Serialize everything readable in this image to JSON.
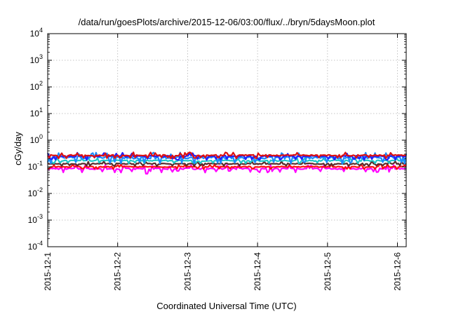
{
  "chart_data": {
    "type": "line",
    "title": "/data/run/goesPlots/archive/2015-12-06/03:00/flux/../bryn/5daysMoon.plot",
    "xlabel": "Coordinated Universal Time (UTC)",
    "ylabel": "cGy/day",
    "y_scale": "log",
    "ylim": [
      0.0001,
      10000
    ],
    "y_ticks": [
      {
        "base": "10",
        "exp": "4",
        "value": 10000
      },
      {
        "base": "10",
        "exp": "3",
        "value": 1000
      },
      {
        "base": "10",
        "exp": "2",
        "value": 100
      },
      {
        "base": "10",
        "exp": "1",
        "value": 10
      },
      {
        "base": "10",
        "exp": "0",
        "value": 1
      },
      {
        "base": "10",
        "exp": "-1",
        "value": 0.1
      },
      {
        "base": "10",
        "exp": "-2",
        "value": 0.01
      },
      {
        "base": "10",
        "exp": "-3",
        "value": 0.001
      },
      {
        "base": "10",
        "exp": "-4",
        "value": 0.0001
      }
    ],
    "xlim": [
      "2015-12-01T00:00",
      "2015-12-06T03:00"
    ],
    "x_ticks": [
      "2015-12-1",
      "2015-12-2",
      "2015-12-3",
      "2015-12-4",
      "2015-12-5",
      "2015-12-6"
    ],
    "grid": true,
    "legend": "none",
    "series": [
      {
        "color": "#ff00ff",
        "base": 0.085,
        "amp": 0.12,
        "dips": [
          [
            1.42,
            0.055
          ],
          [
            1.85,
            0.07
          ],
          [
            2.6,
            0.07
          ]
        ]
      },
      {
        "color": "#ff1010",
        "base": 0.1,
        "amp": 0.08,
        "dips": []
      },
      {
        "color": "#5a2a2a",
        "base": 0.13,
        "amp": 0.08,
        "dips": []
      },
      {
        "color": "#20c8c8",
        "base": 0.17,
        "amp": 0.09,
        "dips": []
      },
      {
        "color": "#1a8cff",
        "base": 0.22,
        "amp": 0.18,
        "dips": []
      },
      {
        "color": "#2020ff",
        "base": 0.25,
        "amp": 0.12,
        "dips": []
      },
      {
        "color": "#dd1111",
        "base": 0.27,
        "amp": 0.1,
        "dips": []
      }
    ]
  }
}
